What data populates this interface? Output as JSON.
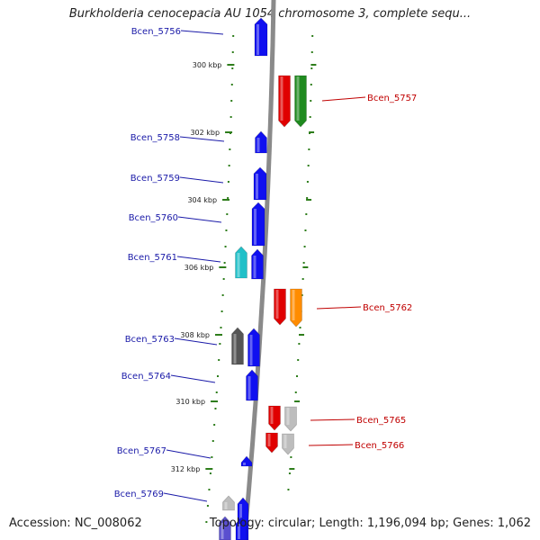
{
  "title": "Burkholderia cenocepacia AU 1054 chromosome 3, complete sequ...",
  "footer": {
    "accession": "Accession: NC_008062",
    "info": "Topology: circular; Length: 1,196,094 bp; Genes: 1,062"
  },
  "colors": {
    "forward_label": "#1a1aa8",
    "reverse_label": "#c00000",
    "tick": "#2e7d1b",
    "backbone": "#8a8a8a"
  },
  "kbp_ticks": [
    {
      "label": "300 kbp",
      "kbp": 300
    },
    {
      "label": "302 kbp",
      "kbp": 302
    },
    {
      "label": "304 kbp",
      "kbp": 304
    },
    {
      "label": "306 kbp",
      "kbp": 306
    },
    {
      "label": "308 kbp",
      "kbp": 308
    },
    {
      "label": "310 kbp",
      "kbp": 310
    },
    {
      "label": "312 kbp",
      "kbp": 312
    }
  ],
  "gene_labels": [
    {
      "name": "Bcen_5756",
      "strand": "forward"
    },
    {
      "name": "Bcen_5757",
      "strand": "reverse"
    },
    {
      "name": "Bcen_5758",
      "strand": "forward"
    },
    {
      "name": "Bcen_5759",
      "strand": "forward"
    },
    {
      "name": "Bcen_5760",
      "strand": "forward"
    },
    {
      "name": "Bcen_5761",
      "strand": "forward"
    },
    {
      "name": "Bcen_5762",
      "strand": "reverse"
    },
    {
      "name": "Bcen_5763",
      "strand": "forward"
    },
    {
      "name": "Bcen_5764",
      "strand": "forward"
    },
    {
      "name": "Bcen_5765",
      "strand": "reverse"
    },
    {
      "name": "Bcen_5766",
      "strand": "reverse"
    },
    {
      "name": "Bcen_5767",
      "strand": "forward"
    },
    {
      "name": "Bcen_5769",
      "strand": "forward"
    }
  ],
  "genes": [
    {
      "name": "Bcen_5756",
      "strand": "forward",
      "color": "#1010f0"
    },
    {
      "name": "Bcen_5757",
      "strand": "reverse",
      "color": "#e00000"
    },
    {
      "name": "Bcen_5757 neighbor",
      "strand": "reverse",
      "color": "#1f8a1f"
    },
    {
      "name": "Bcen_5758",
      "strand": "forward",
      "color": "#1010f0"
    },
    {
      "name": "Bcen_5759",
      "strand": "forward",
      "color": "#1010f0"
    },
    {
      "name": "Bcen_5760",
      "strand": "forward",
      "color": "#1010f0"
    },
    {
      "name": "Bcen_5761",
      "strand": "forward",
      "color": "#1010f0"
    },
    {
      "name": "Bcen_5761 neighbor",
      "strand": "forward",
      "color": "#20c0c8"
    },
    {
      "name": "Bcen_5762",
      "strand": "reverse",
      "color": "#e00000"
    },
    {
      "name": "Bcen_5762 neighbor",
      "strand": "reverse",
      "color": "#ff8c00"
    },
    {
      "name": "Bcen_5763",
      "strand": "forward",
      "color": "#555555"
    },
    {
      "name": "Bcen_5763 neighbor",
      "strand": "forward",
      "color": "#1010f0"
    },
    {
      "name": "Bcen_5764",
      "strand": "forward",
      "color": "#1010f0"
    },
    {
      "name": "Bcen_5765",
      "strand": "reverse",
      "color": "#e00000"
    },
    {
      "name": "Bcen_5765 neighbor",
      "strand": "reverse",
      "color": "#bdbdbd"
    },
    {
      "name": "Bcen_5766",
      "strand": "reverse",
      "color": "#e00000"
    },
    {
      "name": "Bcen_5766 neighbor",
      "strand": "reverse",
      "color": "#bdbdbd"
    },
    {
      "name": "Bcen_5767",
      "strand": "forward",
      "color": "#1010f0"
    },
    {
      "name": "Bcen_5769",
      "strand": "forward",
      "color": "#1010f0"
    },
    {
      "name": "Bcen_5769 neighbor",
      "strand": "forward",
      "color": "#bdbdbd"
    },
    {
      "name": "lower gene A",
      "strand": "forward",
      "color": "#5a4fcf"
    },
    {
      "name": "lower gene B",
      "strand": "forward",
      "color": "#1010f0"
    }
  ]
}
